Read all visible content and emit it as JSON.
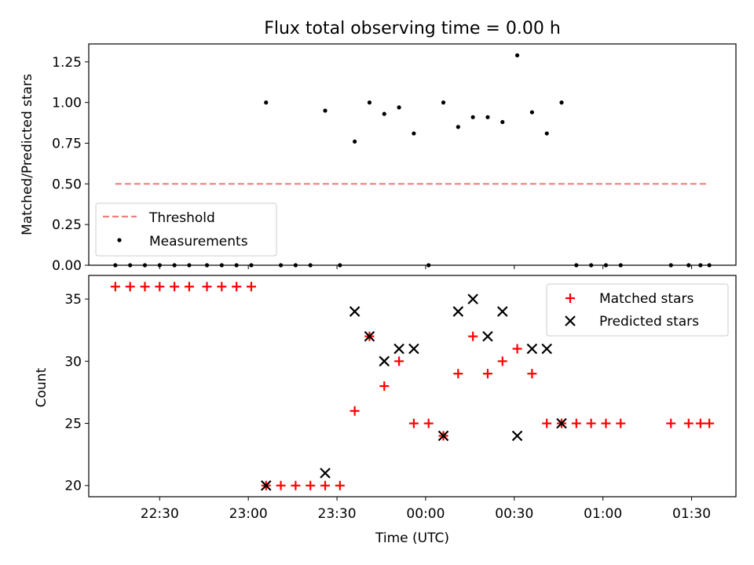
{
  "chart_data": [
    {
      "type": "scatter",
      "title": "Flux total observing time = 0.00 h",
      "ylabel": "Matched/Predicted stars",
      "xlabel": "",
      "ylim": [
        0,
        1.36
      ],
      "yticks": [
        0.0,
        0.25,
        0.5,
        0.75,
        1.0,
        1.25
      ],
      "ytick_labels": [
        "0.00",
        "0.25",
        "0.50",
        "0.75",
        "1.00",
        "1.25"
      ],
      "grid": false,
      "legend": "lower-left",
      "series": [
        {
          "name": "Threshold",
          "style": "dashed-line",
          "color": "#f08080",
          "points": [
            [
              "22:15",
              0.5
            ],
            [
              "23:30",
              0.5
            ],
            [
              "01:36",
              0.5
            ]
          ]
        },
        {
          "name": "Measurements",
          "style": "dot",
          "color": "#000000",
          "points": [
            [
              "22:15",
              0
            ],
            [
              "22:20",
              0
            ],
            [
              "22:25",
              0
            ],
            [
              "22:30",
              0
            ],
            [
              "22:35",
              0
            ],
            [
              "22:40",
              0
            ],
            [
              "22:46",
              0
            ],
            [
              "22:51",
              0
            ],
            [
              "22:56",
              0
            ],
            [
              "23:01",
              0
            ],
            [
              "23:06",
              1.0
            ],
            [
              "23:11",
              0
            ],
            [
              "23:16",
              0
            ],
            [
              "23:21",
              0
            ],
            [
              "23:26",
              0.95
            ],
            [
              "23:31",
              0
            ],
            [
              "23:36",
              0.76
            ],
            [
              "23:41",
              1.0
            ],
            [
              "23:46",
              0.93
            ],
            [
              "23:51",
              0.97
            ],
            [
              "23:56",
              0.81
            ],
            [
              "00:01",
              0
            ],
            [
              "00:06",
              1.0
            ],
            [
              "00:11",
              0.85
            ],
            [
              "00:16",
              0.91
            ],
            [
              "00:21",
              0.91
            ],
            [
              "00:26",
              0.88
            ],
            [
              "00:31",
              1.29
            ],
            [
              "00:36",
              0.94
            ],
            [
              "00:41",
              0.81
            ],
            [
              "00:46",
              1.0
            ],
            [
              "00:51",
              0
            ],
            [
              "00:56",
              0
            ],
            [
              "01:01",
              0
            ],
            [
              "01:06",
              0
            ],
            [
              "01:23",
              0
            ],
            [
              "01:29",
              0
            ],
            [
              "01:33",
              0
            ],
            [
              "01:36",
              0
            ]
          ]
        }
      ]
    },
    {
      "type": "scatter",
      "title": "",
      "xlabel": "Time (UTC)",
      "ylabel": "Count",
      "ylim": [
        19.1,
        36.9
      ],
      "yticks": [
        20,
        25,
        30,
        35
      ],
      "ytick_labels": [
        "20",
        "25",
        "30",
        "35"
      ],
      "xticks": [
        "22:30",
        "23:00",
        "23:30",
        "00:00",
        "00:30",
        "01:00",
        "01:30"
      ],
      "grid": false,
      "legend": "top-right",
      "series": [
        {
          "name": "Matched stars",
          "marker": "plus",
          "color": "#ff0000",
          "points": [
            [
              "22:15",
              36
            ],
            [
              "22:20",
              36
            ],
            [
              "22:25",
              36
            ],
            [
              "22:30",
              36
            ],
            [
              "22:35",
              36
            ],
            [
              "22:40",
              36
            ],
            [
              "22:46",
              36
            ],
            [
              "22:51",
              36
            ],
            [
              "22:56",
              36
            ],
            [
              "23:01",
              36
            ],
            [
              "23:06",
              20
            ],
            [
              "23:11",
              20
            ],
            [
              "23:16",
              20
            ],
            [
              "23:21",
              20
            ],
            [
              "23:26",
              20
            ],
            [
              "23:31",
              20
            ],
            [
              "23:36",
              26
            ],
            [
              "23:41",
              32
            ],
            [
              "23:46",
              28
            ],
            [
              "23:51",
              30
            ],
            [
              "23:56",
              25
            ],
            [
              "00:01",
              25
            ],
            [
              "00:06",
              24
            ],
            [
              "00:11",
              29
            ],
            [
              "00:16",
              32
            ],
            [
              "00:21",
              29
            ],
            [
              "00:26",
              30
            ],
            [
              "00:31",
              31
            ],
            [
              "00:36",
              29
            ],
            [
              "00:41",
              25
            ],
            [
              "00:46",
              25
            ],
            [
              "00:51",
              25
            ],
            [
              "00:56",
              25
            ],
            [
              "01:01",
              25
            ],
            [
              "01:06",
              25
            ],
            [
              "01:23",
              25
            ],
            [
              "01:29",
              25
            ],
            [
              "01:33",
              25
            ],
            [
              "01:36",
              25
            ]
          ]
        },
        {
          "name": "Predicted stars",
          "marker": "x",
          "color": "#000000",
          "points": [
            [
              "23:06",
              20
            ],
            [
              "23:26",
              21
            ],
            [
              "23:36",
              34
            ],
            [
              "23:41",
              32
            ],
            [
              "23:46",
              30
            ],
            [
              "23:51",
              31
            ],
            [
              "23:56",
              31
            ],
            [
              "00:06",
              24
            ],
            [
              "00:11",
              34
            ],
            [
              "00:16",
              35
            ],
            [
              "00:21",
              32
            ],
            [
              "00:26",
              34
            ],
            [
              "00:31",
              24
            ],
            [
              "00:36",
              31
            ],
            [
              "00:41",
              31
            ],
            [
              "00:46",
              25
            ]
          ]
        }
      ]
    }
  ]
}
